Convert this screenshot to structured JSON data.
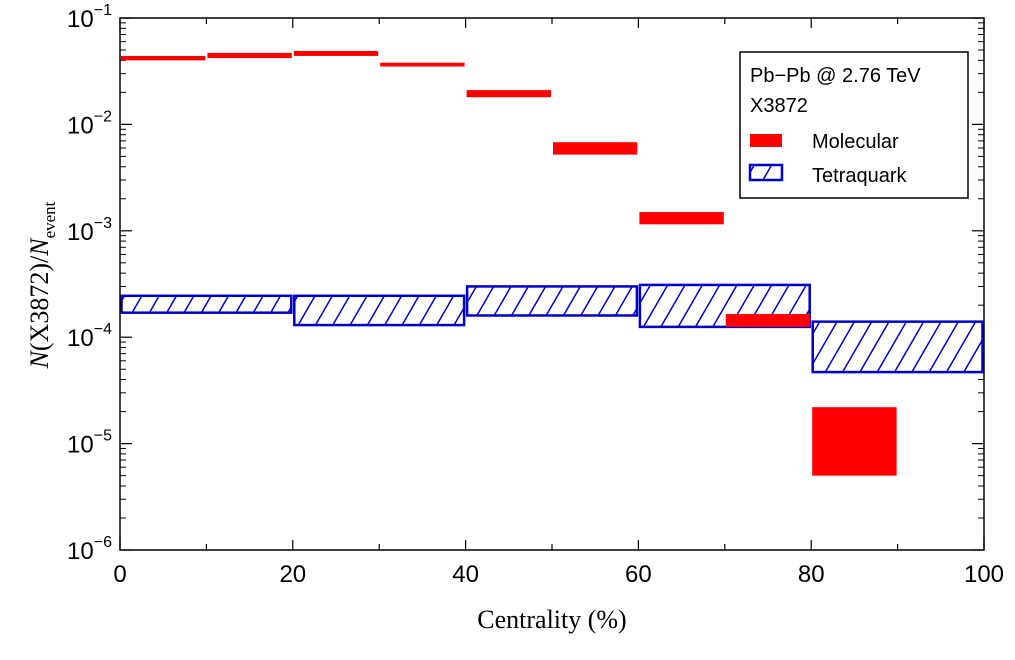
{
  "chart_data": {
    "type": "bar",
    "xlabel": "Centrality (%)",
    "ylabel": "N(X3872)/N_event",
    "xlim": [
      0,
      100
    ],
    "ylim": [
      1e-06,
      0.1
    ],
    "yscale": "log",
    "xticks": [
      0,
      20,
      40,
      60,
      80,
      100
    ],
    "yticks": [
      {
        "value": 1e-06,
        "base": "10",
        "exp": "−6"
      },
      {
        "value": 1e-05,
        "base": "10",
        "exp": "−5"
      },
      {
        "value": 0.0001,
        "base": "10",
        "exp": "−4"
      },
      {
        "value": 0.001,
        "base": "10",
        "exp": "−3"
      },
      {
        "value": 0.01,
        "base": "10",
        "exp": "−2"
      },
      {
        "value": 0.1,
        "base": "10",
        "exp": "−1"
      }
    ],
    "legend": {
      "placement": "top-right",
      "title_line1": "Pb−Pb @ 2.76 TeV",
      "title_line2": "X3872"
    },
    "series": [
      {
        "name": "Molecular",
        "style": "solid",
        "color": "#ff0000",
        "bins": [
          {
            "x0": 0,
            "x1": 10,
            "low": 0.04,
            "high": 0.044
          },
          {
            "x0": 10,
            "x1": 20,
            "low": 0.042,
            "high": 0.047
          },
          {
            "x0": 20,
            "x1": 30,
            "low": 0.044,
            "high": 0.049
          },
          {
            "x0": 30,
            "x1": 40,
            "low": 0.035,
            "high": 0.038
          },
          {
            "x0": 40,
            "x1": 50,
            "low": 0.018,
            "high": 0.021
          },
          {
            "x0": 50,
            "x1": 60,
            "low": 0.0052,
            "high": 0.0068
          },
          {
            "x0": 60,
            "x1": 70,
            "low": 0.00115,
            "high": 0.0015
          },
          {
            "x0": 70,
            "x1": 80,
            "low": 0.000125,
            "high": 0.000165
          },
          {
            "x0": 80,
            "x1": 90,
            "low": 5e-06,
            "high": 2.2e-05
          }
        ]
      },
      {
        "name": "Tetraquark",
        "style": "hatched",
        "color": "#0000cc",
        "bins": [
          {
            "x0": 0,
            "x1": 20,
            "low": 0.00017,
            "high": 0.000245
          },
          {
            "x0": 20,
            "x1": 40,
            "low": 0.00013,
            "high": 0.000245
          },
          {
            "x0": 40,
            "x1": 60,
            "low": 0.00016,
            "high": 0.0003
          },
          {
            "x0": 60,
            "x1": 80,
            "low": 0.000125,
            "high": 0.00031
          },
          {
            "x0": 80,
            "x1": 100,
            "low": 4.7e-05,
            "high": 0.00014
          }
        ]
      }
    ]
  }
}
